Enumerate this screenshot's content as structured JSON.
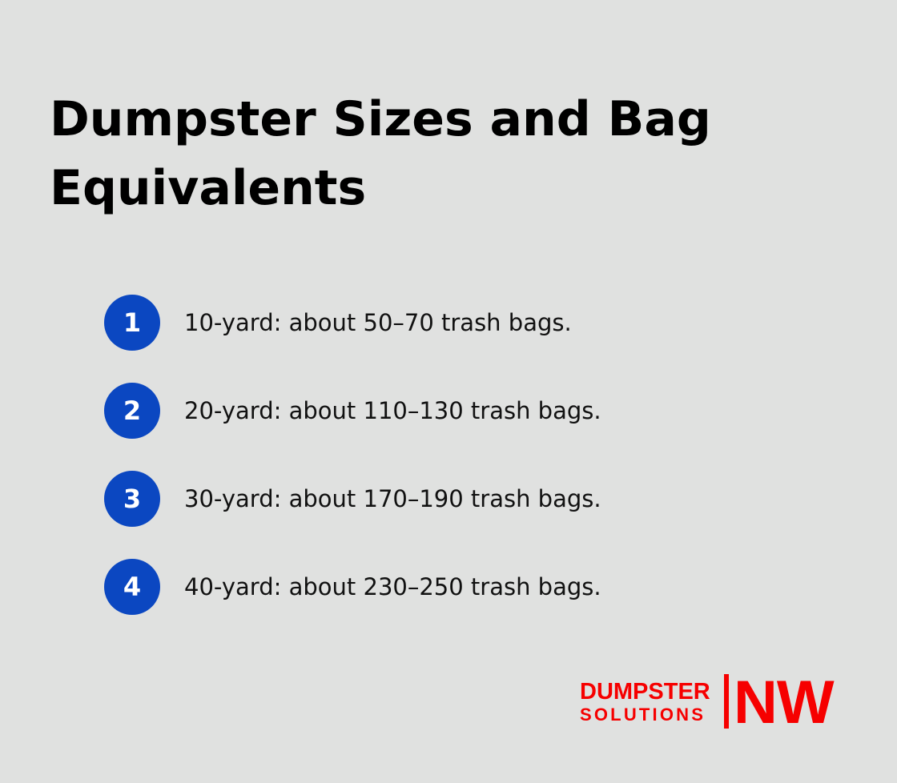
{
  "title": "Dumpster Sizes and Bag Equivalents",
  "items": [
    {
      "number": "1",
      "text": "10-yard: about 50–70 trash bags."
    },
    {
      "number": "2",
      "text": "20-yard: about 110–130 trash bags."
    },
    {
      "number": "3",
      "text": "30-yard: about 170–190 trash bags."
    },
    {
      "number": "4",
      "text": "40-yard: about 230–250 trash bags."
    }
  ],
  "logo": {
    "line1": "DUMPSTER",
    "line2": "SOLUTIONS",
    "mark": "NW"
  },
  "colors": {
    "background": "#e0e1e0",
    "accent": "#0b47c1",
    "brand": "#f60000"
  }
}
